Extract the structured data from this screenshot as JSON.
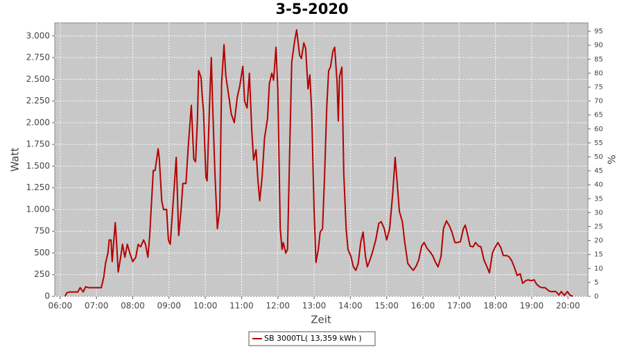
{
  "chart_data": {
    "type": "line",
    "title": "3-5-2020",
    "xlabel": "Zeit",
    "ylabel": "Watt",
    "y2label": "%",
    "xlim": [
      351,
      1233
    ],
    "xticks": [
      {
        "value": 360,
        "label": "06:00"
      },
      {
        "value": 420,
        "label": "07:00"
      },
      {
        "value": 480,
        "label": "08:00"
      },
      {
        "value": 540,
        "label": "09:00"
      },
      {
        "value": 600,
        "label": "10:00"
      },
      {
        "value": 660,
        "label": "11:00"
      },
      {
        "value": 720,
        "label": "12:00"
      },
      {
        "value": 780,
        "label": "13:00"
      },
      {
        "value": 840,
        "label": "14:00"
      },
      {
        "value": 900,
        "label": "15:00"
      },
      {
        "value": 960,
        "label": "16:00"
      },
      {
        "value": 1020,
        "label": "17:00"
      },
      {
        "value": 1080,
        "label": "18:00"
      },
      {
        "value": 1140,
        "label": "19:00"
      },
      {
        "value": 1200,
        "label": "20:00"
      }
    ],
    "ylim": [
      0,
      3150
    ],
    "yticks": [
      0,
      250,
      500,
      750,
      {
        "value": 1000,
        "label": "1.000"
      },
      {
        "value": 1250,
        "label": "1.250"
      },
      {
        "value": 1500,
        "label": "1.500"
      },
      {
        "value": 1750,
        "label": "1.750"
      },
      {
        "value": 2000,
        "label": "2.000"
      },
      {
        "value": 2250,
        "label": "2.250"
      },
      {
        "value": 2500,
        "label": "2.500"
      },
      {
        "value": 2750,
        "label": "2.750"
      },
      {
        "value": 3000,
        "label": "3.000"
      }
    ],
    "y2lim": [
      0,
      98
    ],
    "y2ticks": [
      0,
      5,
      10,
      15,
      20,
      25,
      30,
      35,
      40,
      45,
      50,
      55,
      60,
      65,
      70,
      75,
      80,
      85,
      90,
      95
    ],
    "grid": true,
    "legend": "bottom",
    "x": [
      368,
      371,
      375,
      384,
      389,
      393,
      398,
      402,
      407,
      421,
      428,
      432,
      435,
      439,
      441,
      444,
      446,
      451,
      453,
      456,
      460,
      463,
      467,
      471,
      476,
      480,
      485,
      489,
      493,
      498,
      501,
      505,
      508,
      514,
      517,
      522,
      524,
      528,
      531,
      536,
      539,
      542,
      547,
      552,
      556,
      560,
      563,
      568,
      572,
      577,
      581,
      584,
      587,
      589,
      593,
      595,
      597,
      601,
      603,
      607,
      610,
      612,
      616,
      620,
      624,
      627,
      631,
      634,
      639,
      643,
      648,
      653,
      657,
      662,
      665,
      669,
      673,
      677,
      680,
      684,
      687,
      690,
      694,
      698,
      703,
      706,
      710,
      713,
      717,
      720,
      724,
      727,
      729,
      733,
      736,
      740,
      743,
      748,
      751,
      756,
      759,
      763,
      766,
      770,
      773,
      776,
      780,
      783,
      787,
      790,
      794,
      797,
      801,
      804,
      807,
      811,
      814,
      818,
      820,
      822,
      826,
      829,
      833,
      836,
      841,
      845,
      849,
      853,
      857,
      861,
      865,
      868,
      873,
      877,
      882,
      887,
      891,
      896,
      900,
      905,
      910,
      914,
      918,
      921,
      926,
      930,
      935,
      939,
      944,
      949,
      953,
      958,
      962,
      967,
      971,
      976,
      981,
      985,
      990,
      994,
      999,
      1004,
      1008,
      1013,
      1017,
      1022,
      1027,
      1030,
      1033,
      1038,
      1043,
      1047,
      1052,
      1056,
      1061,
      1066,
      1070,
      1075,
      1079,
      1084,
      1089,
      1093,
      1098,
      1102,
      1107,
      1111,
      1116,
      1121,
      1125,
      1130,
      1134,
      1139,
      1144,
      1148,
      1153,
      1157,
      1162,
      1167,
      1171,
      1180,
      1185,
      1189,
      1194,
      1199,
      1203,
      1208
    ],
    "series": [
      {
        "name": "SB 3000TL( 13,359 kWh )",
        "color": "#b40000",
        "values": [
          0,
          40,
          50,
          50,
          50,
          100,
          50,
          110,
          100,
          100,
          100,
          220,
          380,
          500,
          650,
          650,
          400,
          850,
          650,
          280,
          450,
          600,
          450,
          600,
          480,
          400,
          450,
          600,
          570,
          650,
          600,
          450,
          700,
          1450,
          1450,
          1700,
          1580,
          1100,
          1000,
          1000,
          650,
          600,
          1100,
          1600,
          700,
          1000,
          1300,
          1300,
          1750,
          2200,
          1580,
          1550,
          2050,
          2600,
          2520,
          2300,
          2140,
          1370,
          1330,
          2200,
          2750,
          2220,
          1420,
          780,
          1010,
          2450,
          2900,
          2540,
          2300,
          2100,
          2000,
          2300,
          2420,
          2650,
          2250,
          2170,
          2570,
          1900,
          1570,
          1690,
          1340,
          1100,
          1380,
          1820,
          2050,
          2450,
          2570,
          2490,
          2870,
          2380,
          780,
          540,
          620,
          500,
          540,
          1820,
          2700,
          2950,
          3070,
          2780,
          2740,
          2920,
          2860,
          2390,
          2550,
          2140,
          1000,
          390,
          540,
          740,
          780,
          1340,
          2180,
          2600,
          2640,
          2820,
          2870,
          2460,
          2020,
          2530,
          2640,
          1420,
          780,
          540,
          460,
          340,
          300,
          380,
          620,
          740,
          460,
          340,
          430,
          520,
          650,
          840,
          860,
          780,
          650,
          780,
          1180,
          1600,
          1250,
          980,
          860,
          620,
          380,
          340,
          300,
          350,
          420,
          580,
          620,
          550,
          520,
          470,
          390,
          340,
          460,
          780,
          870,
          810,
          740,
          620,
          620,
          630,
          780,
          820,
          740,
          580,
          570,
          620,
          580,
          570,
          420,
          340,
          270,
          500,
          560,
          620,
          560,
          470,
          470,
          460,
          410,
          340,
          240,
          260,
          150,
          180,
          190,
          180,
          190,
          140,
          110,
          100,
          100,
          70,
          55,
          55,
          15,
          55,
          10,
          55,
          15,
          0
        ]
      }
    ]
  }
}
